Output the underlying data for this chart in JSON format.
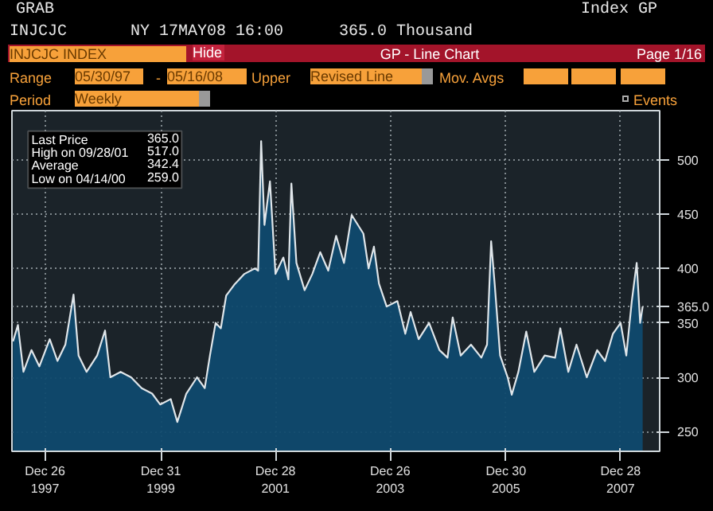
{
  "chart_data": {
    "type": "area",
    "title": "GP - Line Chart",
    "annotations": [
      "GRAB",
      "Index GP",
      "INJCJC",
      "NY 17MAY08 16:00",
      "365.0 Thousand",
      "INJCJC INDEX",
      "Hide",
      "Page 1/16",
      "Range",
      "05/30/97",
      "-",
      "05/16/08",
      "Upper",
      "Revised Line",
      "Mov. Avgs",
      "Period",
      "Weekly",
      "Events",
      "Last Price 365.0",
      "High on 09/28/01 517.0",
      "Average 342.4",
      "Low on 04/14/00 259.0"
    ],
    "x": [
      "1997-06-06",
      "1997-07-07",
      "1997-08-11",
      "1997-10-01",
      "1997-11-20",
      "1998-01-25",
      "1998-03-15",
      "1998-05-04",
      "1998-06-25",
      "1998-07-27",
      "1998-09-16",
      "1998-11-22",
      "1999-01-11",
      "1999-02-14",
      "1999-04-20",
      "1999-06-25",
      "1999-09-01",
      "1999-11-06",
      "1999-12-27",
      "2000-03-03",
      "2000-04-14",
      "2000-06-10",
      "2000-08-17",
      "2000-10-05",
      "2000-11-07",
      "2000-12-13",
      "2001-01-15",
      "2001-02-18",
      "2001-04-10",
      "2001-06-14",
      "2001-08-19",
      "2001-09-09",
      "2001-09-28",
      "2001-10-19",
      "2001-11-23",
      "2001-12-28",
      "2002-02-16",
      "2002-03-20",
      "2002-04-08",
      "2002-05-10",
      "2002-07-01",
      "2002-08-19",
      "2002-10-08",
      "2002-11-28",
      "2003-01-17",
      "2003-03-08",
      "2003-04-26",
      "2003-07-09",
      "2003-08-11",
      "2003-09-14",
      "2003-10-16",
      "2003-12-04",
      "2004-02-10",
      "2004-03-31",
      "2004-05-04",
      "2004-06-24",
      "2004-08-29",
      "2004-11-03",
      "2004-12-24",
      "2005-01-26",
      "2005-03-18",
      "2005-05-22",
      "2005-07-27",
      "2005-09-01",
      "2005-09-27",
      "2005-10-20",
      "2005-11-23",
      "2006-01-10",
      "2006-02-05",
      "2006-03-19",
      "2006-05-08",
      "2006-06-28",
      "2006-09-02",
      "2006-11-07",
      "2006-12-10",
      "2007-01-30",
      "2007-03-23",
      "2007-05-27",
      "2007-08-01",
      "2007-09-20",
      "2007-11-09",
      "2007-12-28",
      "2008-02-02",
      "2008-03-08",
      "2008-04-08",
      "2008-04-30",
      "2008-05-16"
    ],
    "series": [
      {
        "color": "#e0e6ea",
        "values": [
          333,
          348,
          305,
          325,
          310,
          335,
          315,
          330,
          376,
          320,
          305,
          320,
          343,
          300,
          305,
          300,
          290,
          285,
          275,
          280,
          259,
          285,
          300,
          290,
          320,
          350,
          345,
          375,
          385,
          395,
          400,
          398,
          517,
          440,
          480,
          395,
          410,
          390,
          478,
          405,
          380,
          395,
          415,
          398,
          430,
          405,
          449,
          432,
          400,
          420,
          386,
          365,
          370,
          340,
          360,
          335,
          350,
          325,
          318,
          355,
          320,
          330,
          318,
          330,
          425,
          385,
          320,
          300,
          284,
          305,
          342,
          305,
          320,
          318,
          345,
          305,
          330,
          300,
          325,
          315,
          340,
          350,
          320,
          370,
          405,
          350,
          365
        ]
      }
    ],
    "xlim": [
      "1997-05-30",
      "2008-09-01"
    ],
    "ylim": [
      232,
      545
    ],
    "xticks": [
      {
        "value": "1997-12-26",
        "label": "Dec 26\n1997"
      },
      {
        "value": "1999-12-31",
        "label": "Dec 31\n1999"
      },
      {
        "value": "2001-12-28",
        "label": "Dec 28\n2001"
      },
      {
        "value": "2003-12-26",
        "label": "Dec 26\n2003"
      },
      {
        "value": "2005-12-30",
        "label": "Dec 30\n2005"
      },
      {
        "value": "2007-12-28",
        "label": "Dec 28\n2007"
      }
    ],
    "yticks": [
      250,
      300,
      350,
      {
        "value": 365,
        "label": "365.0"
      },
      400,
      450,
      500
    ],
    "grid": true
  }
}
